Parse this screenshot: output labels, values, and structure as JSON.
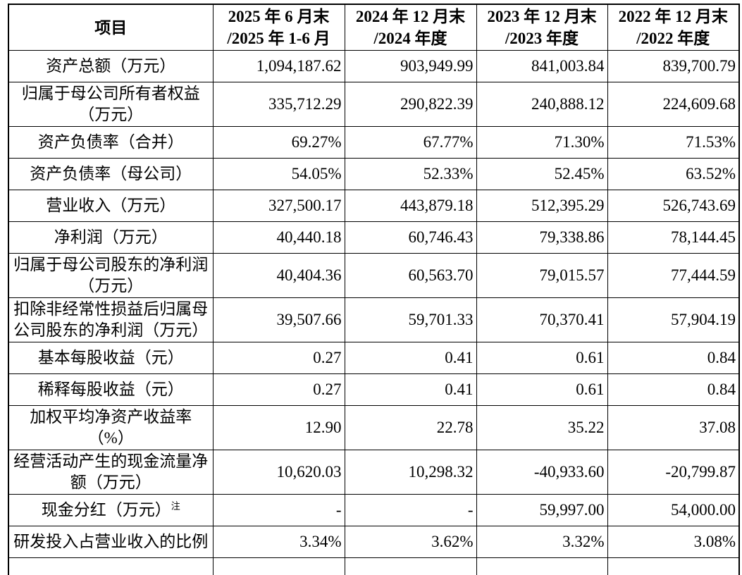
{
  "table": {
    "header": {
      "item_column": "项目",
      "period_columns": [
        "2025 年 6 月末\n/2025 年 1-6 月",
        "2024 年 12 月末\n/2024 年度",
        "2023 年 12 月末\n/2023 年度",
        "2022 年 12 月末\n/2022 年度"
      ]
    },
    "rows": [
      {
        "label": "资产总额（万元）",
        "values": [
          "1,094,187.62",
          "903,949.99",
          "841,003.84",
          "839,700.79"
        ]
      },
      {
        "label": "归属于母公司所有者权益\n（万元）",
        "values": [
          "335,712.29",
          "290,822.39",
          "240,888.12",
          "224,609.68"
        ]
      },
      {
        "label": "资产负债率（合并）",
        "values": [
          "69.27%",
          "67.77%",
          "71.30%",
          "71.53%"
        ]
      },
      {
        "label": "资产负债率（母公司）",
        "values": [
          "54.05%",
          "52.33%",
          "52.45%",
          "63.52%"
        ]
      },
      {
        "label": "营业收入（万元）",
        "values": [
          "327,500.17",
          "443,879.18",
          "512,395.29",
          "526,743.69"
        ]
      },
      {
        "label": "净利润（万元）",
        "values": [
          "40,440.18",
          "60,746.43",
          "79,338.86",
          "78,144.45"
        ]
      },
      {
        "label": "归属于母公司股东的净利润\n（万元）",
        "values": [
          "40,404.36",
          "60,563.70",
          "79,015.57",
          "77,444.59"
        ]
      },
      {
        "label": "扣除非经常性损益后归属母\n公司股东的净利润（万元）",
        "values": [
          "39,507.66",
          "59,701.33",
          "70,370.41",
          "57,904.19"
        ]
      },
      {
        "label": "基本每股收益（元）",
        "values": [
          "0.27",
          "0.41",
          "0.61",
          "0.84"
        ]
      },
      {
        "label": "稀释每股收益（元）",
        "values": [
          "0.27",
          "0.41",
          "0.61",
          "0.84"
        ]
      },
      {
        "label": "加权平均净资产收益率\n（%）",
        "values": [
          "12.90",
          "22.78",
          "35.22",
          "37.08"
        ]
      },
      {
        "label": "经营活动产生的现金流量净\n额（万元）",
        "values": [
          "10,620.03",
          "10,298.32",
          "-40,933.60",
          "-20,799.87"
        ]
      },
      {
        "label": "现金分红（万元）",
        "label_superscript": "注",
        "values": [
          "-",
          "-",
          "59,997.00",
          "54,000.00"
        ]
      },
      {
        "label": "研发投入占营业收入的比例",
        "values": [
          "3.34%",
          "3.62%",
          "3.32%",
          "3.08%"
        ]
      }
    ],
    "colors": {
      "text": "#000000",
      "border": "#000000",
      "background": "#ffffff"
    }
  }
}
